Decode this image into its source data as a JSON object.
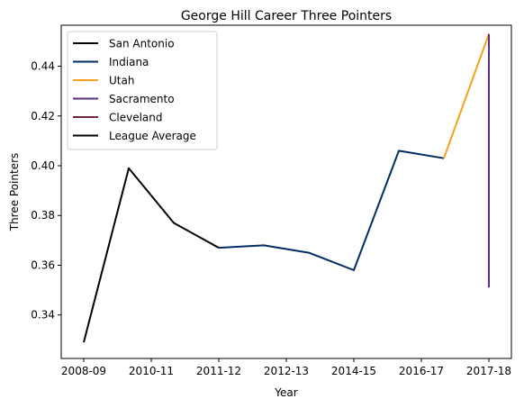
{
  "chart_data": {
    "type": "line",
    "title": "George Hill  Career Three Pointers",
    "xlabel": "Year",
    "ylabel": "Three Pointers",
    "x_ticks": [
      "2008-09",
      "2010-11",
      "2011-12",
      "2012-13",
      "2014-15",
      "2016-17",
      "2017-18"
    ],
    "ylim": [
      0.3225,
      0.4565
    ],
    "y_ticks": [
      "0.34",
      "0.36",
      "0.38",
      "0.40",
      "0.42",
      "0.44"
    ],
    "grid": false,
    "legend_position": "top-left",
    "series": [
      {
        "name": "San Antonio",
        "color": "#000000",
        "x": [
          0,
          1,
          2,
          3
        ],
        "y": [
          0.329,
          0.399,
          0.377,
          0.367
        ]
      },
      {
        "name": "Indiana",
        "color": "#002d62",
        "x": [
          3,
          4,
          5,
          6,
          7,
          8
        ],
        "y": [
          0.367,
          0.368,
          0.365,
          0.358,
          0.406,
          0.403
        ]
      },
      {
        "name": "Utah",
        "color": "#f9a01b",
        "x": [
          8,
          9
        ],
        "y": [
          0.403,
          0.453
        ]
      },
      {
        "name": "Sacramento",
        "color": "#5a2d81",
        "x": [
          9,
          9
        ],
        "y": [
          0.453,
          0.351
        ]
      },
      {
        "name": "Cleveland",
        "color": "#6f263d",
        "x": [
          9
        ],
        "y": [
          0.453
        ]
      },
      {
        "name": "League Average",
        "color": "#000000",
        "x": [],
        "y": []
      }
    ]
  }
}
